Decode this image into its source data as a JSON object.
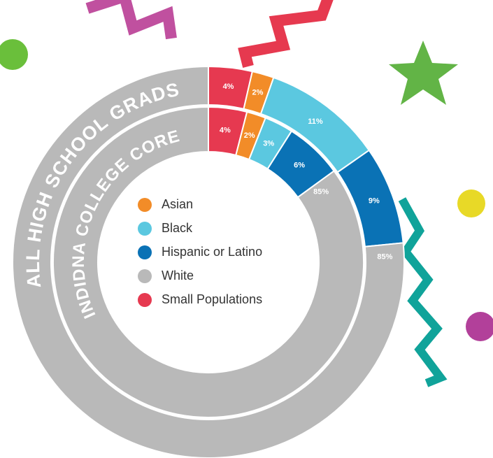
{
  "chart_data": {
    "type": "donut",
    "categories": [
      "Asian",
      "Black",
      "Hispanic or Latino",
      "White",
      "Small Populations"
    ],
    "colors": [
      "#f28c28",
      "#5bc8e0",
      "#0a72b5",
      "#b9b9b9",
      "#e63950"
    ],
    "series": [
      {
        "name": "ALL HIGH SCHOOL GRADS",
        "values": [
          2,
          11,
          9,
          85,
          4
        ],
        "value_labels": [
          "2%",
          "11%",
          "9%",
          "85%",
          "4%"
        ]
      },
      {
        "name": "INDIDNA COLLEGE CORE",
        "values": [
          2,
          3,
          6,
          85,
          4
        ],
        "value_labels": [
          "2%",
          "3%",
          "6%",
          "85%",
          "4%"
        ]
      }
    ]
  }
}
